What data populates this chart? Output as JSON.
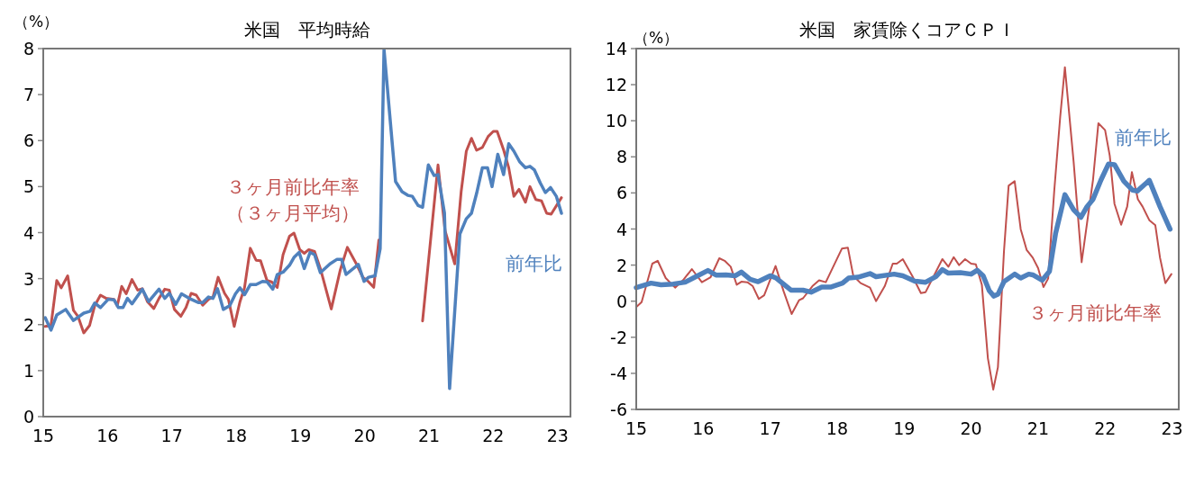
{
  "chart_data": [
    {
      "type": "line",
      "title": "米国　平均時給",
      "ylabel": "（%）",
      "xlim": [
        15,
        23.2
      ],
      "ylim": [
        0,
        8
      ],
      "xticks": [
        15,
        16,
        17,
        18,
        19,
        20,
        21,
        22,
        23
      ],
      "yticks": [
        0,
        1,
        2,
        3,
        4,
        5,
        6,
        7,
        8
      ],
      "legend": false,
      "grid": false,
      "series": [
        {
          "name": "３ヶ月前比年率（３ヶ月平均）",
          "color": "#c0504d",
          "x": [
            15.03,
            15.12,
            15.21,
            15.28,
            15.38,
            15.47,
            15.54,
            15.63,
            15.72,
            15.8,
            15.89,
            15.98,
            16.1,
            16.15,
            16.22,
            16.29,
            16.38,
            16.47,
            16.54,
            16.62,
            16.72,
            16.8,
            16.89,
            16.96,
            17.04,
            17.14,
            17.22,
            17.3,
            17.38,
            17.48,
            17.57,
            17.64,
            17.72,
            17.82,
            17.88,
            17.97,
            18.06,
            18.13,
            18.22,
            18.31,
            18.38,
            18.48,
            18.55,
            18.64,
            18.73,
            18.83,
            18.9,
            18.99,
            19.06,
            19.13,
            19.22,
            19.31,
            19.48,
            19.62,
            19.73,
            19.87,
            19.97,
            20.06,
            20.14,
            20.22,
            20.9,
            21.14,
            21.25,
            21.4,
            21.5,
            21.58,
            21.66,
            21.74,
            21.83,
            21.92,
            22.0,
            22.06,
            22.16,
            22.24,
            22.32,
            22.4,
            22.5,
            22.57,
            22.66,
            22.75,
            22.83,
            22.9,
            23.06
          ],
          "values": [
            1.96,
            1.98,
            2.96,
            2.8,
            3.06,
            2.31,
            2.18,
            1.82,
            1.98,
            2.41,
            2.64,
            2.57,
            2.55,
            2.41,
            2.83,
            2.67,
            2.98,
            2.75,
            2.78,
            2.5,
            2.35,
            2.57,
            2.77,
            2.75,
            2.33,
            2.18,
            2.37,
            2.68,
            2.64,
            2.42,
            2.55,
            2.6,
            3.03,
            2.68,
            2.55,
            1.96,
            2.5,
            2.8,
            3.66,
            3.4,
            3.39,
            2.96,
            2.93,
            2.81,
            3.52,
            3.92,
            3.99,
            3.63,
            3.55,
            3.63,
            3.59,
            3.22,
            2.34,
            3.19,
            3.68,
            3.32,
            3.03,
            2.93,
            2.81,
            3.84,
            2.08,
            5.47,
            4.04,
            3.32,
            4.89,
            5.77,
            6.05,
            5.79,
            5.85,
            6.09,
            6.2,
            6.2,
            5.8,
            5.41,
            4.79,
            4.94,
            4.66,
            5.0,
            4.72,
            4.69,
            4.42,
            4.4,
            4.76
          ]
        },
        {
          "name": "前年比",
          "color": "#4f81bd",
          "x": [
            15.03,
            15.12,
            15.21,
            15.35,
            15.47,
            15.63,
            15.73,
            15.8,
            15.89,
            16.01,
            16.1,
            16.17,
            16.24,
            16.31,
            16.38,
            16.54,
            16.64,
            16.8,
            16.89,
            16.96,
            17.06,
            17.15,
            17.27,
            17.41,
            17.48,
            17.57,
            17.64,
            17.71,
            17.8,
            17.9,
            17.99,
            18.06,
            18.13,
            18.22,
            18.31,
            18.41,
            18.48,
            18.57,
            18.64,
            18.73,
            18.83,
            18.9,
            18.98,
            19.06,
            19.15,
            19.22,
            19.31,
            19.46,
            19.57,
            19.64,
            19.71,
            19.9,
            19.99,
            20.06,
            20.16,
            20.24,
            20.3,
            20.48,
            20.58,
            20.67,
            20.74,
            20.83,
            20.9,
            20.99,
            21.08,
            21.14,
            21.24,
            21.32,
            21.48,
            21.58,
            21.66,
            21.74,
            21.83,
            21.91,
            21.98,
            22.07,
            22.16,
            22.24,
            22.32,
            22.41,
            22.5,
            22.57,
            22.64,
            22.73,
            22.81,
            22.89,
            22.98,
            23.06
          ],
          "values": [
            2.15,
            1.88,
            2.21,
            2.33,
            2.09,
            2.25,
            2.29,
            2.47,
            2.37,
            2.55,
            2.54,
            2.37,
            2.37,
            2.57,
            2.45,
            2.77,
            2.5,
            2.77,
            2.57,
            2.68,
            2.44,
            2.67,
            2.57,
            2.48,
            2.48,
            2.6,
            2.57,
            2.78,
            2.33,
            2.41,
            2.67,
            2.8,
            2.65,
            2.87,
            2.87,
            2.94,
            2.93,
            2.77,
            3.09,
            3.14,
            3.29,
            3.46,
            3.57,
            3.22,
            3.57,
            3.52,
            3.13,
            3.32,
            3.42,
            3.42,
            3.09,
            3.31,
            2.94,
            3.03,
            3.06,
            3.65,
            7.98,
            5.11,
            4.89,
            4.81,
            4.79,
            4.59,
            4.55,
            5.47,
            5.24,
            5.26,
            4.43,
            0.61,
            3.97,
            4.3,
            4.42,
            4.85,
            5.41,
            5.41,
            5.0,
            5.7,
            5.26,
            5.93,
            5.77,
            5.54,
            5.41,
            5.44,
            5.36,
            5.08,
            4.87,
            4.98,
            4.79,
            4.42
          ]
        }
      ]
    },
    {
      "type": "line",
      "title": "米国　家賃除くコアＣＰＩ",
      "ylabel": "（%）",
      "xlim": [
        15,
        23.1
      ],
      "ylim": [
        -6,
        14
      ],
      "xticks": [
        15,
        16,
        17,
        18,
        19,
        20,
        21,
        22,
        23
      ],
      "yticks": [
        -6,
        -4,
        -2,
        0,
        2,
        4,
        6,
        8,
        10,
        12,
        14
      ],
      "legend": false,
      "grid": false,
      "series": [
        {
          "name": "３ヶ月前比年率",
          "color": "#c0504d",
          "x": [
            15.0,
            15.08,
            15.24,
            15.32,
            15.44,
            15.58,
            15.71,
            15.83,
            15.98,
            16.11,
            16.24,
            16.32,
            16.41,
            16.5,
            16.57,
            16.66,
            16.74,
            16.83,
            16.91,
            17.08,
            17.2,
            17.32,
            17.43,
            17.49,
            17.63,
            17.73,
            17.83,
            18.07,
            18.16,
            18.24,
            18.35,
            18.49,
            18.58,
            18.71,
            18.83,
            18.89,
            18.98,
            19.12,
            19.25,
            19.32,
            19.57,
            19.66,
            19.74,
            19.82,
            19.91,
            20.0,
            20.07,
            20.16,
            20.25,
            20.33,
            20.4,
            20.49,
            20.56,
            20.65,
            20.74,
            20.83,
            20.92,
            21.0,
            21.08,
            21.15,
            21.24,
            21.33,
            21.4,
            21.53,
            21.65,
            21.82,
            21.9,
            22.0,
            22.07,
            22.14,
            22.24,
            22.33,
            22.4,
            22.49,
            22.56,
            22.66,
            22.75,
            22.82,
            22.9,
            22.99
          ],
          "values": [
            -0.33,
            -0.05,
            2.08,
            2.24,
            1.28,
            0.75,
            1.21,
            1.78,
            1.05,
            1.33,
            2.38,
            2.24,
            1.91,
            0.91,
            1.08,
            1.05,
            0.83,
            0.12,
            0.33,
            1.95,
            0.55,
            -0.71,
            0.05,
            0.16,
            0.83,
            1.16,
            1.05,
            2.91,
            2.96,
            1.41,
            1.0,
            0.75,
            0.0,
            0.83,
            2.08,
            2.08,
            2.33,
            1.41,
            0.45,
            0.5,
            2.33,
            1.91,
            2.44,
            2.0,
            2.33,
            2.08,
            2.04,
            0.91,
            -3.16,
            -4.9,
            -3.66,
            2.74,
            6.4,
            6.65,
            3.99,
            2.83,
            2.41,
            1.83,
            0.78,
            1.25,
            6.07,
            10.22,
            12.97,
            7.73,
            2.16,
            6.73,
            9.86,
            9.48,
            8.06,
            5.4,
            4.24,
            5.24,
            7.15,
            5.65,
            5.24,
            4.49,
            4.21,
            2.41,
            1.0,
            1.5
          ]
        },
        {
          "name": "前年比",
          "color": "#4f81bd",
          "x": [
            15.0,
            15.22,
            15.37,
            15.55,
            15.73,
            15.85,
            16.07,
            16.19,
            16.34,
            16.48,
            16.57,
            16.7,
            16.82,
            17.0,
            17.09,
            17.31,
            17.49,
            17.61,
            17.77,
            17.9,
            18.08,
            18.17,
            18.31,
            18.49,
            18.58,
            18.85,
            18.98,
            19.16,
            19.32,
            19.48,
            19.57,
            19.66,
            19.84,
            20.0,
            20.09,
            20.18,
            20.27,
            20.34,
            20.4,
            20.49,
            20.65,
            20.74,
            20.86,
            20.92,
            21.06,
            21.17,
            21.26,
            21.4,
            21.53,
            21.64,
            21.73,
            21.82,
            21.94,
            22.05,
            22.14,
            22.28,
            22.41,
            22.48,
            22.66,
            22.82,
            22.97
          ],
          "values": [
            0.75,
            1.0,
            0.91,
            0.95,
            1.05,
            1.28,
            1.7,
            1.45,
            1.46,
            1.41,
            1.61,
            1.21,
            1.08,
            1.41,
            1.28,
            0.61,
            0.61,
            0.5,
            0.78,
            0.78,
            1.0,
            1.28,
            1.33,
            1.53,
            1.36,
            1.5,
            1.41,
            1.11,
            1.05,
            1.38,
            1.75,
            1.55,
            1.58,
            1.5,
            1.71,
            1.41,
            0.58,
            0.28,
            0.38,
            1.08,
            1.5,
            1.28,
            1.5,
            1.46,
            1.16,
            1.66,
            3.74,
            5.9,
            5.07,
            4.65,
            5.24,
            5.65,
            6.73,
            7.6,
            7.57,
            6.65,
            6.15,
            6.1,
            6.7,
            5.24,
            3.99
          ]
        }
      ]
    }
  ]
}
